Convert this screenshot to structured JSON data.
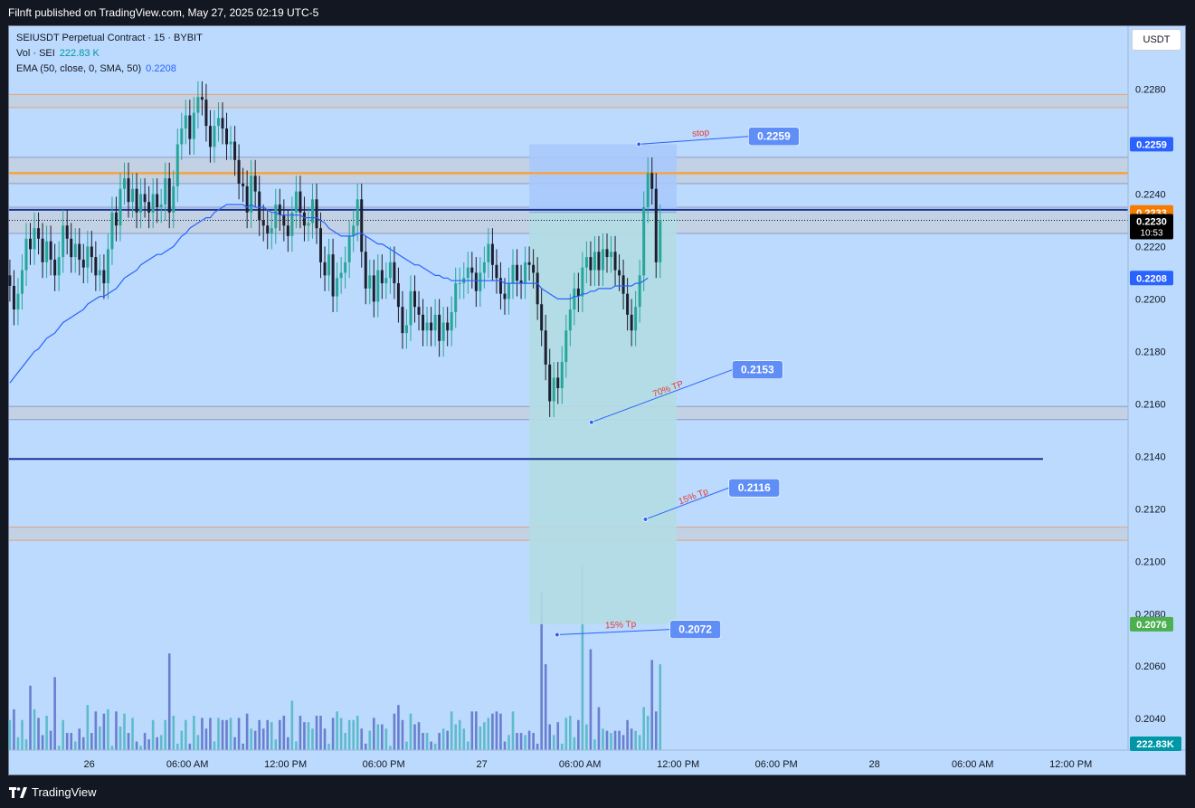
{
  "header": {
    "published_text": "Filnft published on TradingView.com, May 27, 2025 02:19 UTC-5"
  },
  "legend": {
    "symbol_line": "SEIUSDT Perpetual Contract · 15 · BYBIT",
    "vol_label": "Vol · SEI",
    "vol_value": "222.83 K",
    "ema_label": "EMA (50, close, 0, SMA, 50)",
    "ema_value": "0.2208"
  },
  "currency_button": "USDT",
  "footer": {
    "brand": "TradingView"
  },
  "colors": {
    "background": "#bbdafd",
    "up_candle": "#26a69a",
    "down_candle": "#1b1f2e",
    "ema_line": "#2962ff",
    "orange_line": "#f7a342",
    "navy_line": "#1a3493",
    "stop_zone": "#a9c9fb",
    "target_zone": "#b4dbe4",
    "label_blue": "#5f8ef7",
    "annotation_red": "#e53935",
    "price_badge_blue": "#2962ff",
    "price_badge_orange": "#f57c00",
    "price_badge_green": "#4caf50",
    "price_badge_dark": "#000000"
  },
  "chart_data": {
    "type": "candlestick",
    "symbol": "SEIUSDT",
    "interval": "15",
    "ylim": [
      0.2028,
      0.2304
    ],
    "y_ticks": [
      "0.2280",
      "0.2260",
      "0.2240",
      "0.2220",
      "0.2200",
      "0.2180",
      "0.2160",
      "0.2140",
      "0.2120",
      "0.2100",
      "0.2080",
      "0.2060",
      "0.2040"
    ],
    "x_ticks": [
      "26",
      "06:00 AM",
      "12:00 PM",
      "06:00 PM",
      "27",
      "06:00 AM",
      "12:00 PM",
      "06:00 PM",
      "28",
      "06:00 AM",
      "12:00 PM"
    ],
    "x_tick_hours": [
      0,
      6,
      12,
      18,
      24,
      30,
      36,
      42,
      48,
      54,
      60
    ],
    "xlim_hours": [
      -4.9,
      63.5
    ],
    "candle_interval_hours": 0.25,
    "first_candle_hour": -4.85,
    "closes": [
      0.2205,
      0.2196,
      0.2202,
      0.2211,
      0.2223,
      0.2219,
      0.2227,
      0.2223,
      0.2214,
      0.2222,
      0.2215,
      0.2209,
      0.2216,
      0.2228,
      0.2223,
      0.2216,
      0.2221,
      0.2215,
      0.2212,
      0.222,
      0.2216,
      0.2209,
      0.2211,
      0.2206,
      0.2219,
      0.2233,
      0.2228,
      0.2242,
      0.2246,
      0.2237,
      0.2242,
      0.2233,
      0.224,
      0.2237,
      0.2233,
      0.224,
      0.2235,
      0.2236,
      0.2246,
      0.2233,
      0.2243,
      0.2259,
      0.2265,
      0.227,
      0.2261,
      0.2271,
      0.2277,
      0.2276,
      0.2266,
      0.2258,
      0.2266,
      0.2269,
      0.2265,
      0.2259,
      0.226,
      0.2253,
      0.2244,
      0.2243,
      0.2233,
      0.2247,
      0.2241,
      0.223,
      0.2228,
      0.2225,
      0.2227,
      0.2236,
      0.2232,
      0.2228,
      0.2224,
      0.2233,
      0.2241,
      0.2233,
      0.2228,
      0.2229,
      0.2238,
      0.2227,
      0.2214,
      0.2209,
      0.2217,
      0.2201,
      0.2208,
      0.221,
      0.2214,
      0.2224,
      0.2228,
      0.2238,
      0.2218,
      0.2204,
      0.2209,
      0.2199,
      0.2211,
      0.2206,
      0.2208,
      0.2214,
      0.2206,
      0.2197,
      0.2187,
      0.219,
      0.2203,
      0.2197,
      0.2194,
      0.2188,
      0.2191,
      0.2188,
      0.2194,
      0.2184,
      0.2191,
      0.2188,
      0.2195,
      0.2206,
      0.2206,
      0.2208,
      0.2212,
      0.221,
      0.2203,
      0.221,
      0.2214,
      0.2221,
      0.2213,
      0.2208,
      0.2202,
      0.22,
      0.2206,
      0.2213,
      0.2207,
      0.2206,
      0.2214,
      0.2213,
      0.221,
      0.2198,
      0.2188,
      0.2175,
      0.2161,
      0.217,
      0.2166,
      0.2176,
      0.2188,
      0.2196,
      0.2204,
      0.2201,
      0.2212,
      0.2216,
      0.2211,
      0.2218,
      0.2211,
      0.2219,
      0.2216,
      0.2218,
      0.2211,
      0.2209,
      0.2202,
      0.2194,
      0.2188,
      0.2197,
      0.2209,
      0.2235,
      0.2248,
      0.2242,
      0.2214,
      0.223
    ],
    "ema50": [
      0.2168,
      0.217,
      0.2172,
      0.2174,
      0.2176,
      0.2178,
      0.218,
      0.2181,
      0.2183,
      0.2185,
      0.2186,
      0.2187,
      0.2189,
      0.2191,
      0.2192,
      0.2193,
      0.2194,
      0.2195,
      0.2196,
      0.2198,
      0.2199,
      0.22,
      0.2201,
      0.2201,
      0.2202,
      0.2203,
      0.2204,
      0.2206,
      0.2208,
      0.2209,
      0.221,
      0.2211,
      0.2213,
      0.2214,
      0.2215,
      0.2216,
      0.2217,
      0.2217,
      0.2218,
      0.2219,
      0.222,
      0.2222,
      0.2224,
      0.2225,
      0.2227,
      0.2228,
      0.2229,
      0.223,
      0.2231,
      0.2231,
      0.2233,
      0.2234,
      0.2235,
      0.2236,
      0.2236,
      0.2236,
      0.2236,
      0.2236,
      0.2235,
      0.2236,
      0.2235,
      0.2235,
      0.2235,
      0.2234,
      0.2233,
      0.2233,
      0.2232,
      0.2232,
      0.2232,
      0.2232,
      0.2232,
      0.2232,
      0.2231,
      0.2231,
      0.2231,
      0.2231,
      0.223,
      0.2229,
      0.2227,
      0.2226,
      0.2225,
      0.2224,
      0.2224,
      0.2224,
      0.2224,
      0.2225,
      0.2225,
      0.2224,
      0.2223,
      0.2222,
      0.2221,
      0.2221,
      0.222,
      0.2219,
      0.2218,
      0.2217,
      0.2216,
      0.2215,
      0.2214,
      0.2213,
      0.2213,
      0.2212,
      0.2211,
      0.221,
      0.2209,
      0.2209,
      0.2208,
      0.2208,
      0.2207,
      0.2207,
      0.2207,
      0.2207,
      0.2207,
      0.2207,
      0.2207,
      0.2207,
      0.2207,
      0.2207,
      0.2207,
      0.2207,
      0.2207,
      0.2206,
      0.2206,
      0.2206,
      0.2206,
      0.2206,
      0.2206,
      0.2206,
      0.2206,
      0.2206,
      0.2204,
      0.2203,
      0.2202,
      0.2201,
      0.22,
      0.22,
      0.22,
      0.22,
      0.2201,
      0.2201,
      0.2202,
      0.2202,
      0.2203,
      0.2203,
      0.2204,
      0.2204,
      0.2204,
      0.2204,
      0.2205,
      0.2205,
      0.2205,
      0.2205,
      0.2205,
      0.2206,
      0.2206,
      0.2207,
      0.2208
    ],
    "volumes": [
      14,
      19,
      6,
      14,
      5,
      30,
      19,
      15,
      7,
      16,
      9,
      34,
      2,
      14,
      8,
      8,
      4,
      10,
      6,
      21,
      8,
      18,
      11,
      17,
      19,
      2,
      18,
      11,
      17,
      8,
      15,
      4,
      2,
      8,
      5,
      14,
      6,
      7,
      14,
      45,
      16,
      3,
      9,
      14,
      3,
      16,
      7,
      15,
      10,
      15,
      4,
      15,
      14,
      14,
      15,
      6,
      15,
      3,
      17,
      10,
      9,
      14,
      10,
      14,
      13,
      5,
      14,
      16,
      6,
      23,
      4,
      16,
      13,
      13,
      10,
      16,
      16,
      10,
      3,
      15,
      18,
      15,
      8,
      14,
      14,
      16,
      10,
      3,
      9,
      15,
      12,
      12,
      10,
      2,
      17,
      21,
      14,
      4,
      17,
      12,
      13,
      8,
      8,
      4,
      3,
      8,
      10,
      9,
      18,
      12,
      14,
      10,
      4,
      18,
      18,
      11,
      13,
      15,
      17,
      18,
      17,
      4,
      7,
      18,
      8,
      8,
      7,
      9,
      8,
      3,
      74,
      40,
      12,
      7,
      13,
      3,
      15,
      16,
      6,
      14,
      86,
      12,
      47,
      5,
      20,
      10,
      9,
      8,
      9,
      9,
      7,
      14,
      10,
      9,
      7,
      20,
      16,
      42,
      18,
      40
    ],
    "vol_max": 86,
    "vol_current": "222.83K",
    "current_price": 0.223,
    "countdown": "10:53",
    "axis_badges": [
      {
        "value": 0.2259,
        "text": "0.2259",
        "color": "#2962ff"
      },
      {
        "value": 0.2233,
        "text": "0.2233",
        "color": "#f57c00"
      },
      {
        "value": 0.223,
        "text": "0.2230",
        "color": "#000000"
      },
      {
        "value": 0.2208,
        "text": "0.2208",
        "color": "#2962ff"
      },
      {
        "value": 0.2076,
        "text": "0.2076",
        "color": "#4caf50"
      }
    ],
    "zones": [
      {
        "from": 0.2273,
        "to": 0.2278,
        "fill": "#c3cfdf",
        "edge": "#e6a27a"
      },
      {
        "from": 0.2244,
        "to": 0.2254,
        "fill": "#c3cfdf",
        "edge": "#8e9cc6"
      },
      {
        "from": 0.2225,
        "to": 0.2235,
        "fill": "#c3cfdf",
        "edge": "#8e9cc6"
      },
      {
        "from": 0.2154,
        "to": 0.2159,
        "fill": "#c3cfdf",
        "edge": "#8e9cc6"
      },
      {
        "from": 0.2108,
        "to": 0.2113,
        "fill": "#c3cfdf",
        "edge": "#e6a27a"
      }
    ],
    "horizontal_lines": [
      {
        "value": 0.2248,
        "color": "#f7a342",
        "width": 2.5,
        "x_end_hour": null
      },
      {
        "value": 0.2234,
        "color": "#1a3493",
        "width": 2,
        "x_end_hour": null
      },
      {
        "value": 0.223,
        "color": "#131722",
        "width": 1,
        "dashed": true,
        "x_end_hour": null
      },
      {
        "value": 0.2139,
        "color": "#1a3493",
        "width": 2,
        "x_end_hour": 58.3
      }
    ],
    "position": {
      "type": "short",
      "entry": 0.2233,
      "stop": 0.2259,
      "target": 0.2076,
      "from_hour": 26.9,
      "to_hour": 35.9
    },
    "targets": [
      {
        "label": "stop",
        "price": "0.2259",
        "line_from": [
          33.6,
          0.2259
        ],
        "line_to": [
          40.3,
          0.2262
        ]
      },
      {
        "label": "70% TP",
        "price": "0.2153",
        "line_from": [
          30.7,
          0.2153
        ],
        "line_to": [
          39.3,
          0.2173
        ]
      },
      {
        "label": "15% Tp",
        "price": "0.2116",
        "line_from": [
          34.0,
          0.2116
        ],
        "line_to": [
          39.1,
          0.2128
        ]
      },
      {
        "label": "15% Tp",
        "price": "0.2072",
        "line_from": [
          28.6,
          0.2072
        ],
        "line_to": [
          35.5,
          0.2074
        ]
      }
    ]
  }
}
